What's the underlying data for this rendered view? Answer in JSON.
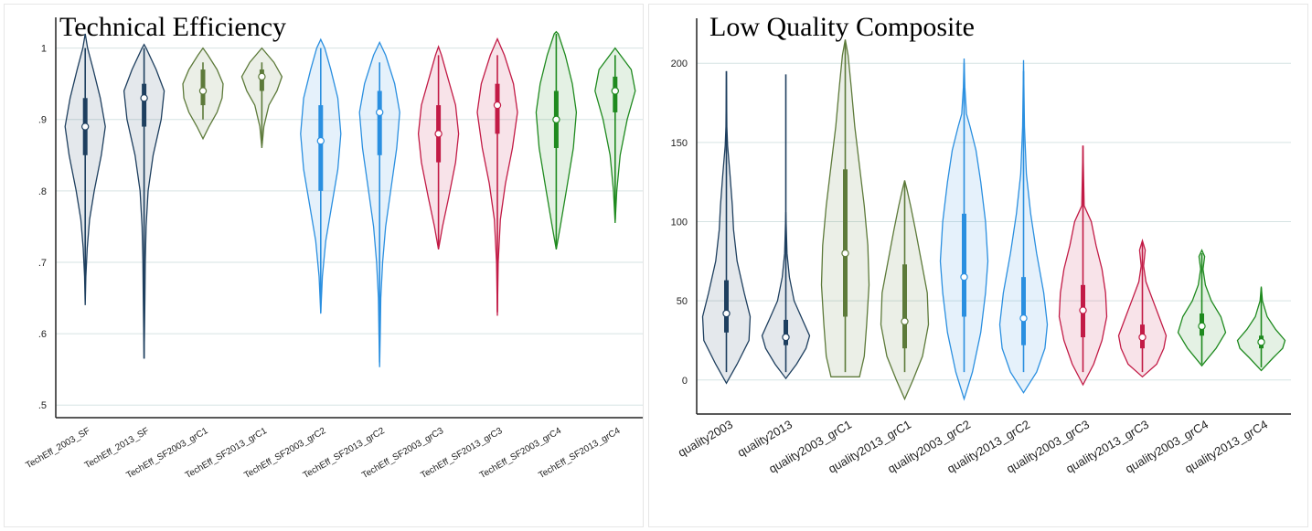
{
  "colors": {
    "grid": "#d6e3e3",
    "axis": "#222222",
    "navy": "#1e3f5f",
    "olive": "#5d7a3a",
    "blue": "#2a8fe0",
    "crimson": "#c21b46",
    "green": "#1f8a1f"
  },
  "chart_data": [
    {
      "type": "violin",
      "title": "Technical Efficiency",
      "xlabel": "",
      "ylabel": "",
      "ylim": [
        0.49,
        1.02
      ],
      "yticks": [
        ".5",
        ".6",
        ".7",
        ".8",
        ".9",
        "1"
      ],
      "ytick_values": [
        0.5,
        0.6,
        0.7,
        0.8,
        0.9,
        1.0
      ],
      "grid": true,
      "categories": [
        "TechEff_2003_SF",
        "TechEff_2013_SF",
        "TechEff_SF2003_grC1",
        "TechEff_SF2013_grC1",
        "TechEff_SF2003_grC2",
        "TechEff_SF2013_grC2",
        "TechEff_SF2003_grC3",
        "TechEff_SF2013_grC3",
        "TechEff_SF2003_grC4",
        "TechEff_SF2013_grC4"
      ],
      "series": [
        {
          "color": "navy",
          "median": 0.89,
          "q1": 0.85,
          "q3": 0.93,
          "whisker_low": 0.67,
          "whisker_high": 1.0,
          "density": [
            [
              0.64,
              0.0
            ],
            [
              0.68,
              0.03
            ],
            [
              0.72,
              0.1
            ],
            [
              0.76,
              0.22
            ],
            [
              0.8,
              0.45
            ],
            [
              0.85,
              0.8
            ],
            [
              0.89,
              1.0
            ],
            [
              0.93,
              0.75
            ],
            [
              0.97,
              0.4
            ],
            [
              1.0,
              0.12
            ],
            [
              1.02,
              0.0
            ]
          ]
        },
        {
          "color": "navy",
          "median": 0.93,
          "q1": 0.89,
          "q3": 0.95,
          "whisker_low": 0.565,
          "whisker_high": 1.0,
          "density": [
            [
              0.565,
              0.0
            ],
            [
              0.6,
              0.02
            ],
            [
              0.65,
              0.04
            ],
            [
              0.7,
              0.06
            ],
            [
              0.75,
              0.1
            ],
            [
              0.8,
              0.2
            ],
            [
              0.85,
              0.45
            ],
            [
              0.9,
              0.85
            ],
            [
              0.94,
              1.0
            ],
            [
              0.97,
              0.6
            ],
            [
              1.0,
              0.1
            ],
            [
              1.005,
              0.0
            ]
          ]
        },
        {
          "color": "olive",
          "median": 0.94,
          "q1": 0.92,
          "q3": 0.97,
          "whisker_low": 0.9,
          "whisker_high": 0.98,
          "density": [
            [
              0.873,
              0.0
            ],
            [
              0.89,
              0.3
            ],
            [
              0.91,
              0.7
            ],
            [
              0.93,
              0.95
            ],
            [
              0.95,
              1.0
            ],
            [
              0.97,
              0.7
            ],
            [
              0.99,
              0.25
            ],
            [
              1.0,
              0.0
            ]
          ]
        },
        {
          "color": "olive",
          "median": 0.96,
          "q1": 0.94,
          "q3": 0.97,
          "whisker_low": 0.87,
          "whisker_high": 0.98,
          "density": [
            [
              0.86,
              0.0
            ],
            [
              0.89,
              0.1
            ],
            [
              0.92,
              0.35
            ],
            [
              0.94,
              0.75
            ],
            [
              0.96,
              1.0
            ],
            [
              0.98,
              0.6
            ],
            [
              1.0,
              0.0
            ]
          ]
        },
        {
          "color": "blue",
          "median": 0.87,
          "q1": 0.8,
          "q3": 0.92,
          "whisker_low": 0.63,
          "whisker_high": 1.0,
          "density": [
            [
              0.628,
              0.0
            ],
            [
              0.68,
              0.08
            ],
            [
              0.73,
              0.25
            ],
            [
              0.78,
              0.55
            ],
            [
              0.83,
              0.85
            ],
            [
              0.88,
              1.0
            ],
            [
              0.93,
              0.85
            ],
            [
              0.97,
              0.5
            ],
            [
              1.0,
              0.2
            ],
            [
              1.012,
              0.0
            ]
          ]
        },
        {
          "color": "blue",
          "median": 0.91,
          "q1": 0.85,
          "q3": 0.94,
          "whisker_low": 0.56,
          "whisker_high": 0.98,
          "density": [
            [
              0.553,
              0.0
            ],
            [
              0.6,
              0.03
            ],
            [
              0.65,
              0.06
            ],
            [
              0.7,
              0.15
            ],
            [
              0.75,
              0.3
            ],
            [
              0.8,
              0.55
            ],
            [
              0.86,
              0.85
            ],
            [
              0.91,
              1.0
            ],
            [
              0.95,
              0.75
            ],
            [
              0.99,
              0.3
            ],
            [
              1.008,
              0.0
            ]
          ]
        },
        {
          "color": "crimson",
          "median": 0.88,
          "q1": 0.84,
          "q3": 0.92,
          "whisker_low": 0.72,
          "whisker_high": 0.99,
          "density": [
            [
              0.718,
              0.0
            ],
            [
              0.75,
              0.2
            ],
            [
              0.79,
              0.5
            ],
            [
              0.84,
              0.85
            ],
            [
              0.88,
              1.0
            ],
            [
              0.92,
              0.85
            ],
            [
              0.96,
              0.45
            ],
            [
              0.99,
              0.15
            ],
            [
              1.002,
              0.0
            ]
          ]
        },
        {
          "color": "crimson",
          "median": 0.92,
          "q1": 0.88,
          "q3": 0.95,
          "whisker_low": 0.63,
          "whisker_high": 0.99,
          "density": [
            [
              0.625,
              0.0
            ],
            [
              0.7,
              0.04
            ],
            [
              0.76,
              0.15
            ],
            [
              0.81,
              0.4
            ],
            [
              0.86,
              0.75
            ],
            [
              0.91,
              1.0
            ],
            [
              0.95,
              0.8
            ],
            [
              0.99,
              0.35
            ],
            [
              1.013,
              0.0
            ]
          ]
        },
        {
          "color": "green",
          "median": 0.9,
          "q1": 0.86,
          "q3": 0.94,
          "whisker_low": 0.72,
          "whisker_high": 1.02,
          "density": [
            [
              0.718,
              0.0
            ],
            [
              0.75,
              0.2
            ],
            [
              0.8,
              0.5
            ],
            [
              0.86,
              0.85
            ],
            [
              0.91,
              1.0
            ],
            [
              0.95,
              0.8
            ],
            [
              0.99,
              0.45
            ],
            [
              1.02,
              0.1
            ],
            [
              1.023,
              0.0
            ]
          ]
        },
        {
          "color": "green",
          "median": 0.94,
          "q1": 0.91,
          "q3": 0.96,
          "whisker_low": 0.76,
          "whisker_high": 0.99,
          "density": [
            [
              0.755,
              0.0
            ],
            [
              0.8,
              0.08
            ],
            [
              0.85,
              0.25
            ],
            [
              0.9,
              0.6
            ],
            [
              0.94,
              1.0
            ],
            [
              0.97,
              0.8
            ],
            [
              1.0,
              0.0
            ]
          ]
        }
      ]
    },
    {
      "type": "violin",
      "title": "Low Quality Composite",
      "xlabel": "",
      "ylabel": "",
      "ylim": [
        -18,
        218
      ],
      "yticks": [
        "0",
        "50",
        "100",
        "150",
        "200"
      ],
      "ytick_values": [
        0,
        50,
        100,
        150,
        200
      ],
      "grid": true,
      "categories": [
        "quality2003",
        "quality2013",
        "quality2003_grC1",
        "quality2013_grC1",
        "quality2003_grC2",
        "quality2013_grC2",
        "quality2003_grC3",
        "quality2013_grC3",
        "quality2003_grC4",
        "quality2013_grC4"
      ],
      "series": [
        {
          "color": "navy",
          "median": 42,
          "q1": 30,
          "q3": 63,
          "whisker_low": 5,
          "whisker_high": 195,
          "density": [
            [
              -2,
              0.0
            ],
            [
              10,
              0.45
            ],
            [
              25,
              0.95
            ],
            [
              40,
              1.0
            ],
            [
              55,
              0.75
            ],
            [
              75,
              0.45
            ],
            [
              95,
              0.3
            ],
            [
              110,
              0.25
            ],
            [
              130,
              0.15
            ],
            [
              148,
              0.05
            ],
            [
              160,
              0.02
            ],
            [
              195,
              0.0
            ]
          ]
        },
        {
          "color": "navy",
          "median": 27,
          "q1": 22,
          "q3": 38,
          "whisker_low": 5,
          "whisker_high": 193,
          "density": [
            [
              1,
              0.0
            ],
            [
              10,
              0.45
            ],
            [
              20,
              0.85
            ],
            [
              28,
              1.0
            ],
            [
              38,
              0.7
            ],
            [
              50,
              0.35
            ],
            [
              65,
              0.15
            ],
            [
              80,
              0.05
            ],
            [
              106,
              0.0
            ]
          ]
        },
        {
          "color": "olive",
          "median": 80,
          "q1": 40,
          "q3": 133,
          "whisker_low": 5,
          "whisker_high": 213,
          "density": [
            [
              2,
              0.6
            ],
            [
              15,
              0.8
            ],
            [
              35,
              0.9
            ],
            [
              60,
              1.0
            ],
            [
              85,
              0.95
            ],
            [
              110,
              0.8
            ],
            [
              135,
              0.6
            ],
            [
              160,
              0.4
            ],
            [
              185,
              0.25
            ],
            [
              205,
              0.12
            ],
            [
              215,
              0.0
            ]
          ]
        },
        {
          "color": "olive",
          "median": 37,
          "q1": 20,
          "q3": 73,
          "whisker_low": 5,
          "whisker_high": 125,
          "density": [
            [
              -12,
              0.0
            ],
            [
              0,
              0.35
            ],
            [
              15,
              0.75
            ],
            [
              35,
              1.0
            ],
            [
              55,
              0.95
            ],
            [
              75,
              0.7
            ],
            [
              95,
              0.45
            ],
            [
              110,
              0.25
            ],
            [
              120,
              0.1
            ],
            [
              126,
              0.0
            ]
          ]
        },
        {
          "color": "blue",
          "median": 65,
          "q1": 40,
          "q3": 105,
          "whisker_low": 5,
          "whisker_high": 200,
          "density": [
            [
              -12,
              0.0
            ],
            [
              5,
              0.35
            ],
            [
              30,
              0.7
            ],
            [
              55,
              0.9
            ],
            [
              75,
              1.0
            ],
            [
              100,
              0.9
            ],
            [
              125,
              0.7
            ],
            [
              145,
              0.5
            ],
            [
              160,
              0.25
            ],
            [
              168,
              0.1
            ],
            [
              185,
              0.03
            ],
            [
              203,
              0.0
            ]
          ]
        },
        {
          "color": "blue",
          "median": 39,
          "q1": 22,
          "q3": 65,
          "whisker_low": 5,
          "whisker_high": 195,
          "density": [
            [
              -8,
              0.0
            ],
            [
              5,
              0.55
            ],
            [
              20,
              0.9
            ],
            [
              35,
              1.0
            ],
            [
              55,
              0.85
            ],
            [
              80,
              0.55
            ],
            [
              105,
              0.3
            ],
            [
              130,
              0.12
            ],
            [
              160,
              0.04
            ],
            [
              202,
              0.0
            ]
          ]
        },
        {
          "color": "crimson",
          "median": 44,
          "q1": 27,
          "q3": 60,
          "whisker_low": 5,
          "whisker_high": 148,
          "density": [
            [
              -3,
              0.0
            ],
            [
              10,
              0.45
            ],
            [
              25,
              0.8
            ],
            [
              40,
              1.0
            ],
            [
              55,
              0.95
            ],
            [
              70,
              0.8
            ],
            [
              85,
              0.55
            ],
            [
              100,
              0.35
            ],
            [
              110,
              0.05
            ],
            [
              148,
              0.0
            ]
          ]
        },
        {
          "color": "crimson",
          "median": 27,
          "q1": 20,
          "q3": 35,
          "whisker_low": 5,
          "whisker_high": 87,
          "density": [
            [
              2,
              0.0
            ],
            [
              10,
              0.6
            ],
            [
              20,
              0.9
            ],
            [
              28,
              1.0
            ],
            [
              38,
              0.75
            ],
            [
              50,
              0.45
            ],
            [
              62,
              0.15
            ],
            [
              72,
              0.05
            ],
            [
              82,
              0.12
            ],
            [
              88,
              0.0
            ]
          ]
        },
        {
          "color": "green",
          "median": 34,
          "q1": 28,
          "q3": 42,
          "whisker_low": 10,
          "whisker_high": 80,
          "density": [
            [
              9,
              0.0
            ],
            [
              20,
              0.6
            ],
            [
              30,
              1.0
            ],
            [
              40,
              0.8
            ],
            [
              50,
              0.4
            ],
            [
              60,
              0.15
            ],
            [
              70,
              0.05
            ],
            [
              78,
              0.12
            ],
            [
              82,
              0.0
            ]
          ]
        },
        {
          "color": "green",
          "median": 24,
          "q1": 20,
          "q3": 28,
          "whisker_low": 8,
          "whisker_high": 58,
          "density": [
            [
              6,
              0.0
            ],
            [
              14,
              0.5
            ],
            [
              20,
              0.9
            ],
            [
              25,
              1.0
            ],
            [
              32,
              0.6
            ],
            [
              40,
              0.25
            ],
            [
              50,
              0.05
            ],
            [
              59,
              0.0
            ]
          ]
        }
      ]
    }
  ]
}
